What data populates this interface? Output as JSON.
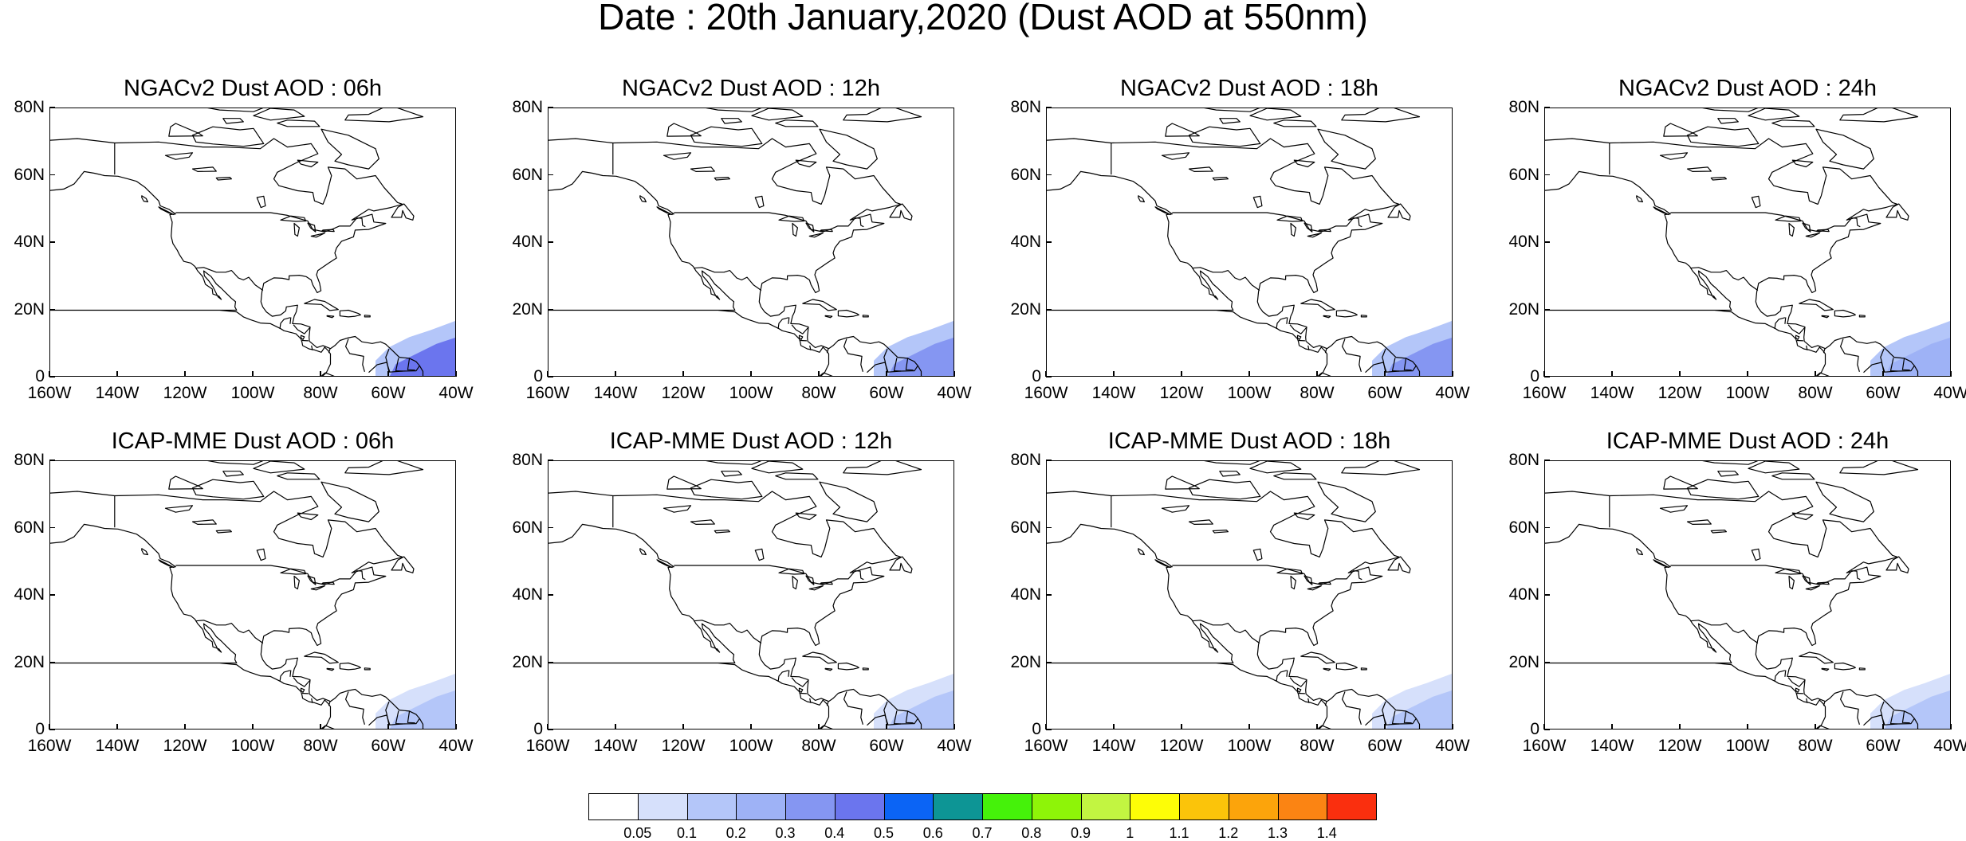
{
  "title": "Date : 20th January,2020 (Dust AOD at 550nm)",
  "panels": [
    {
      "title": "NGACv2 Dust AOD : 06h",
      "model": "NGACv2",
      "lead": "06h",
      "plume_level": 0.4
    },
    {
      "title": "NGACv2 Dust AOD : 12h",
      "model": "NGACv2",
      "lead": "12h",
      "plume_level": 0.35
    },
    {
      "title": "NGACv2 Dust AOD : 18h",
      "model": "NGACv2",
      "lead": "18h",
      "plume_level": 0.3
    },
    {
      "title": "NGACv2 Dust AOD : 24h",
      "model": "NGACv2",
      "lead": "24h",
      "plume_level": 0.25
    },
    {
      "title": "ICAP-MME Dust AOD : 06h",
      "model": "ICAP-MME",
      "lead": "06h",
      "plume_level": 0.15
    },
    {
      "title": "ICAP-MME Dust AOD : 12h",
      "model": "ICAP-MME",
      "lead": "12h",
      "plume_level": 0.15
    },
    {
      "title": "ICAP-MME Dust AOD : 18h",
      "model": "ICAP-MME",
      "lead": "18h",
      "plume_level": 0.12
    },
    {
      "title": "ICAP-MME Dust AOD : 24h",
      "model": "ICAP-MME",
      "lead": "24h",
      "plume_level": 0.1
    }
  ],
  "map": {
    "lon_range": [
      -160,
      -40
    ],
    "lat_range": [
      0,
      80
    ],
    "x_ticks": [
      "160W",
      "140W",
      "120W",
      "100W",
      "80W",
      "60W",
      "40W"
    ],
    "y_ticks": [
      "80N",
      "60N",
      "40N",
      "20N",
      "0"
    ]
  },
  "colorbar": {
    "labels": [
      "0.05",
      "0.1",
      "0.2",
      "0.3",
      "0.4",
      "0.5",
      "0.6",
      "0.7",
      "0.8",
      "0.9",
      "1",
      "1.1",
      "1.2",
      "1.3",
      "1.4"
    ],
    "colors": [
      "#ffffff",
      "#d6e0fb",
      "#b4c6f9",
      "#9eb2f6",
      "#8596f2",
      "#6b75ee",
      "#0b64f5",
      "#0d9595",
      "#45f20a",
      "#8ef408",
      "#c2f541",
      "#fdfd07",
      "#fbc40a",
      "#fca40b",
      "#fb8413",
      "#fa2f0e"
    ]
  }
}
